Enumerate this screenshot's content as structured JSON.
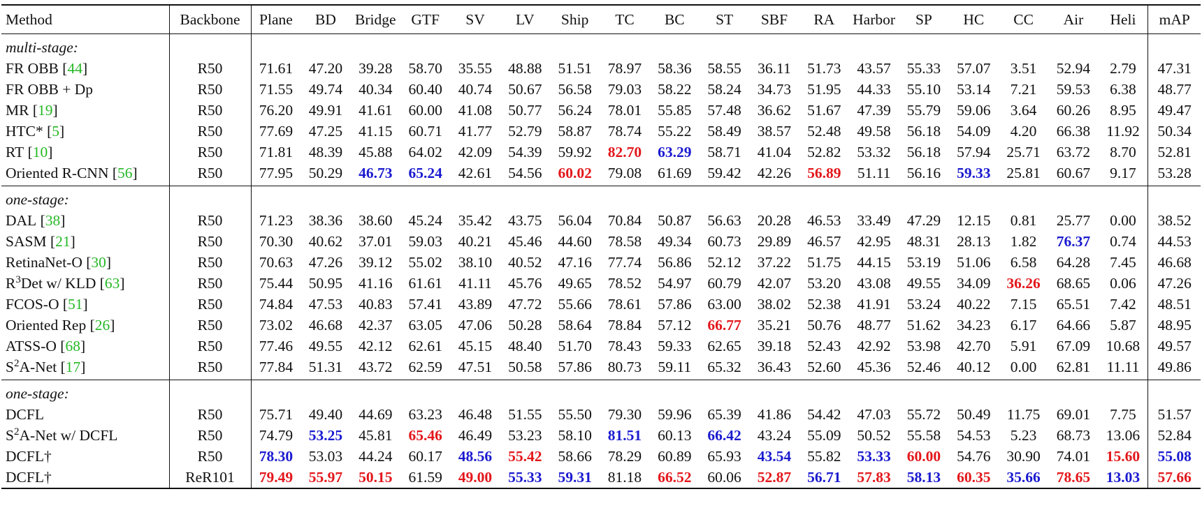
{
  "table": {
    "header": [
      "Method",
      "Backbone",
      "Plane",
      "BD",
      "Bridge",
      "GTF",
      "SV",
      "LV",
      "Ship",
      "TC",
      "BC",
      "ST",
      "SBF",
      "RA",
      "Harbor",
      "SP",
      "HC",
      "CC",
      "Air",
      "Heli",
      "mAP"
    ],
    "sections": [
      {
        "label": "multi-stage:",
        "rows": [
          {
            "method": "FR OBB",
            "ref": "[44]",
            "backbone": "R50",
            "values": [
              "71.61",
              "47.20",
              "39.28",
              "58.70",
              "35.55",
              "48.88",
              "51.51",
              "78.97",
              "58.36",
              "58.55",
              "36.11",
              "51.73",
              "43.57",
              "55.33",
              "57.07",
              "3.51",
              "52.94",
              "2.79",
              "47.31"
            ]
          },
          {
            "method": "FR OBB + Dp",
            "backbone": "R50",
            "values": [
              "71.55",
              "49.74",
              "40.34",
              "60.40",
              "40.74",
              "50.67",
              "56.58",
              "79.03",
              "58.22",
              "58.24",
              "34.73",
              "51.95",
              "44.33",
              "55.10",
              "53.14",
              "7.21",
              "59.53",
              "6.38",
              "48.77"
            ]
          },
          {
            "method": "MR",
            "ref": "[19]",
            "backbone": "R50",
            "values": [
              "76.20",
              "49.91",
              "41.61",
              "60.00",
              "41.08",
              "50.77",
              "56.24",
              "78.01",
              "55.85",
              "57.48",
              "36.62",
              "51.67",
              "47.39",
              "55.79",
              "59.06",
              "3.64",
              "60.26",
              "8.95",
              "49.47"
            ]
          },
          {
            "method": "HTC*",
            "ref": "[5]",
            "backbone": "R50",
            "values": [
              "77.69",
              "47.25",
              "41.15",
              "60.71",
              "41.77",
              "52.79",
              "58.87",
              "78.74",
              "55.22",
              "58.49",
              "38.57",
              "52.48",
              "49.58",
              "56.18",
              "54.09",
              "4.20",
              "66.38",
              "11.92",
              "50.34"
            ]
          },
          {
            "method": "RT",
            "ref": "[10]",
            "backbone": "R50",
            "values": [
              "71.81",
              "48.39",
              "45.88",
              "64.02",
              "42.09",
              "54.39",
              "59.92",
              "82.70",
              "63.29",
              "58.71",
              "41.04",
              "52.82",
              "53.32",
              "56.18",
              "57.94",
              "25.71",
              "63.72",
              "8.70",
              "52.81"
            ],
            "red": [
              7
            ],
            "blue": [
              8
            ]
          },
          {
            "method": "Oriented R-CNN",
            "ref": "[56]",
            "backbone": "R50",
            "values": [
              "77.95",
              "50.29",
              "46.73",
              "65.24",
              "42.61",
              "54.56",
              "60.02",
              "79.08",
              "61.69",
              "59.42",
              "42.26",
              "56.89",
              "51.11",
              "56.16",
              "59.33",
              "25.81",
              "60.67",
              "9.17",
              "53.28"
            ],
            "red": [
              6,
              11
            ],
            "blue": [
              2,
              3,
              14
            ]
          }
        ]
      },
      {
        "label": "one-stage:",
        "rows": [
          {
            "method": "DAL",
            "ref": "[38]",
            "backbone": "R50",
            "values": [
              "71.23",
              "38.36",
              "38.60",
              "45.24",
              "35.42",
              "43.75",
              "56.04",
              "70.84",
              "50.87",
              "56.63",
              "20.28",
              "46.53",
              "33.49",
              "47.29",
              "12.15",
              "0.81",
              "25.77",
              "0.00",
              "38.52"
            ]
          },
          {
            "method": "SASM",
            "ref": "[21]",
            "backbone": "R50",
            "values": [
              "70.30",
              "40.62",
              "37.01",
              "59.03",
              "40.21",
              "45.46",
              "44.60",
              "78.58",
              "49.34",
              "60.73",
              "29.89",
              "46.57",
              "42.95",
              "48.31",
              "28.13",
              "1.82",
              "76.37",
              "0.74",
              "44.53"
            ],
            "blue": [
              16
            ]
          },
          {
            "method": "RetinaNet-O",
            "ref": "[30]",
            "backbone": "R50",
            "values": [
              "70.63",
              "47.26",
              "39.12",
              "55.02",
              "38.10",
              "40.52",
              "47.16",
              "77.74",
              "56.86",
              "52.12",
              "37.22",
              "51.75",
              "44.15",
              "53.19",
              "51.06",
              "6.58",
              "64.28",
              "7.45",
              "46.68"
            ]
          },
          {
            "method_pre": "R",
            "method_sup": "3",
            "method": "Det w/ KLD",
            "ref": "[63]",
            "backbone": "R50",
            "values": [
              "75.44",
              "50.95",
              "41.16",
              "61.61",
              "41.11",
              "45.76",
              "49.65",
              "78.52",
              "54.97",
              "60.79",
              "42.07",
              "53.20",
              "43.08",
              "49.55",
              "34.09",
              "36.26",
              "68.65",
              "0.06",
              "47.26"
            ],
            "red": [
              15
            ]
          },
          {
            "method": "FCOS-O",
            "ref": "[51]",
            "backbone": "R50",
            "values": [
              "74.84",
              "47.53",
              "40.83",
              "57.41",
              "43.89",
              "47.72",
              "55.66",
              "78.61",
              "57.86",
              "63.00",
              "38.02",
              "52.38",
              "41.91",
              "53.24",
              "40.22",
              "7.15",
              "65.51",
              "7.42",
              "48.51"
            ]
          },
          {
            "method": "Oriented Rep",
            "ref": "[26]",
            "backbone": "R50",
            "values": [
              "73.02",
              "46.68",
              "42.37",
              "63.05",
              "47.06",
              "50.28",
              "58.64",
              "78.84",
              "57.12",
              "66.77",
              "35.21",
              "50.76",
              "48.77",
              "51.62",
              "34.23",
              "6.17",
              "64.66",
              "5.87",
              "48.95"
            ],
            "red": [
              9
            ]
          },
          {
            "method": "ATSS-O",
            "ref": "[68]",
            "backbone": "R50",
            "values": [
              "77.46",
              "49.55",
              "42.12",
              "62.61",
              "45.15",
              "48.40",
              "51.70",
              "78.43",
              "59.33",
              "62.65",
              "39.18",
              "52.43",
              "42.92",
              "53.98",
              "42.70",
              "5.91",
              "67.09",
              "10.68",
              "49.57"
            ]
          },
          {
            "method_pre": "S",
            "method_sup": "2",
            "method": "A-Net",
            "ref": "[17]",
            "backbone": "R50",
            "values": [
              "77.84",
              "51.31",
              "43.72",
              "62.59",
              "47.51",
              "50.58",
              "57.86",
              "80.73",
              "59.11",
              "65.32",
              "36.43",
              "52.60",
              "45.36",
              "52.46",
              "40.12",
              "0.00",
              "62.81",
              "11.11",
              "49.86"
            ]
          }
        ]
      },
      {
        "label": "one-stage:",
        "rows": [
          {
            "method": "DCFL",
            "backbone": "R50",
            "values": [
              "75.71",
              "49.40",
              "44.69",
              "63.23",
              "46.48",
              "51.55",
              "55.50",
              "79.30",
              "59.96",
              "65.39",
              "41.86",
              "54.42",
              "47.03",
              "55.72",
              "50.49",
              "11.75",
              "69.01",
              "7.75",
              "51.57"
            ]
          },
          {
            "method_pre": "S",
            "method_sup": "2",
            "method": "A-Net w/ DCFL",
            "backbone": "R50",
            "values": [
              "74.79",
              "53.25",
              "45.81",
              "65.46",
              "46.49",
              "53.23",
              "58.10",
              "81.51",
              "60.13",
              "66.42",
              "43.24",
              "55.09",
              "50.52",
              "55.58",
              "54.53",
              "5.23",
              "68.73",
              "13.06",
              "52.84"
            ],
            "red": [
              3
            ],
            "blue": [
              1,
              7,
              9
            ]
          },
          {
            "method": "DCFL†",
            "backbone": "R50",
            "values": [
              "78.30",
              "53.03",
              "44.24",
              "60.17",
              "48.56",
              "55.42",
              "58.66",
              "78.29",
              "60.89",
              "65.93",
              "43.54",
              "55.82",
              "53.33",
              "60.00",
              "54.76",
              "30.90",
              "74.01",
              "15.60",
              "55.08"
            ],
            "red": [
              5,
              13,
              17
            ],
            "blue": [
              0,
              4,
              10,
              12,
              18
            ]
          },
          {
            "method": "DCFL†",
            "backbone": "ReR101",
            "values": [
              "79.49",
              "55.97",
              "50.15",
              "61.59",
              "49.00",
              "55.33",
              "59.31",
              "81.18",
              "66.52",
              "60.06",
              "52.87",
              "56.71",
              "57.83",
              "58.13",
              "60.35",
              "35.66",
              "78.65",
              "13.03",
              "57.66"
            ],
            "red": [
              0,
              1,
              2,
              4,
              8,
              10,
              12,
              14,
              16,
              18
            ],
            "blue": [
              5,
              6,
              11,
              13,
              15,
              17
            ]
          }
        ]
      }
    ]
  }
}
